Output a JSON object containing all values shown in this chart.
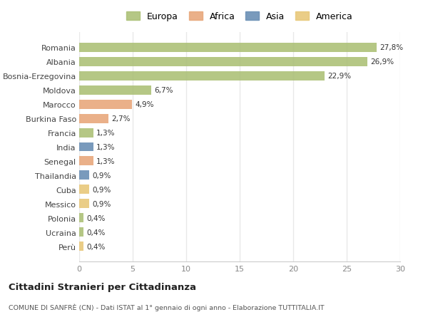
{
  "countries": [
    "Romania",
    "Albania",
    "Bosnia-Erzegovina",
    "Moldova",
    "Marocco",
    "Burkina Faso",
    "Francia",
    "India",
    "Senegal",
    "Thailandia",
    "Cuba",
    "Messico",
    "Polonia",
    "Ucraina",
    "Perù"
  ],
  "values": [
    27.8,
    26.9,
    22.9,
    6.7,
    4.9,
    2.7,
    1.3,
    1.3,
    1.3,
    0.9,
    0.9,
    0.9,
    0.4,
    0.4,
    0.4
  ],
  "labels": [
    "27,8%",
    "26,9%",
    "22,9%",
    "6,7%",
    "4,9%",
    "2,7%",
    "1,3%",
    "1,3%",
    "1,3%",
    "0,9%",
    "0,9%",
    "0,9%",
    "0,4%",
    "0,4%",
    "0,4%"
  ],
  "categories": [
    "Europa",
    "Europa",
    "Europa",
    "Europa",
    "Africa",
    "Africa",
    "Europa",
    "Asia",
    "Africa",
    "Asia",
    "America",
    "America",
    "Europa",
    "Europa",
    "America"
  ],
  "colors": {
    "Europa": "#adc178",
    "Africa": "#e8a87c",
    "Asia": "#6b8fb5",
    "America": "#e8c87a"
  },
  "title": "Cittadini Stranieri per Cittadinanza",
  "subtitle": "COMUNE DI SANFRÈ (CN) - Dati ISTAT al 1° gennaio di ogni anno - Elaborazione TUTTITALIA.IT",
  "xlim": [
    0,
    30
  ],
  "xticks": [
    0,
    5,
    10,
    15,
    20,
    25,
    30
  ],
  "background_color": "#ffffff",
  "grid_color": "#e8e8e8",
  "bar_height": 0.65
}
